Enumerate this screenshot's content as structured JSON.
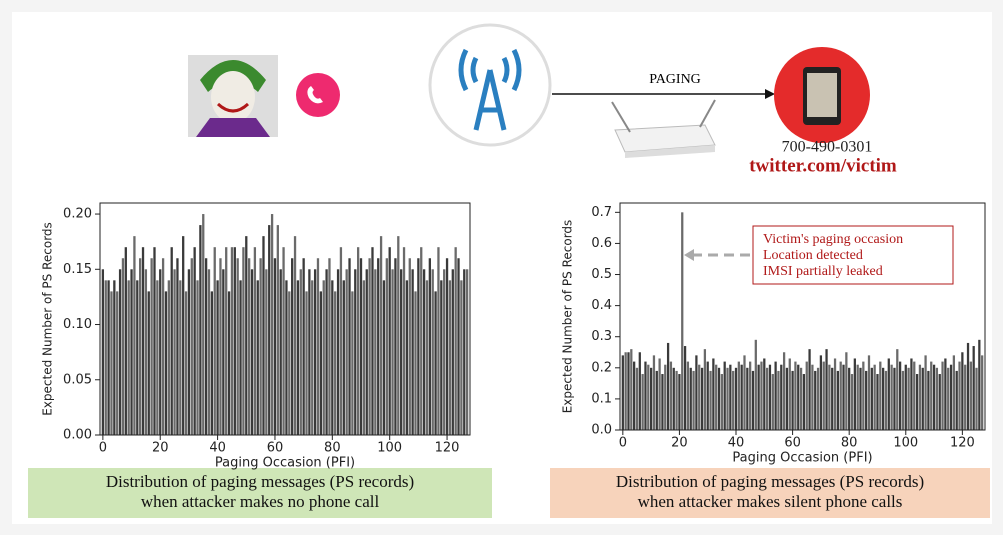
{
  "diagram": {
    "paging_label": "PAGING",
    "phone_number": "700-490-0301",
    "handle": "twitter.com/victim"
  },
  "chart_data": [
    {
      "type": "bar",
      "xlabel": "Paging Occasion (PFI)",
      "ylabel": "Expected Number of PS Records",
      "caption": [
        "Distribution of paging messages (PS records)",
        "when attacker makes no phone call"
      ],
      "color": "#3a3a3a",
      "xlim": [
        -1,
        128
      ],
      "xticks": [
        0,
        20,
        40,
        60,
        80,
        100,
        120
      ],
      "ylim": [
        0,
        0.21
      ],
      "yticks": [
        {
          "value": 0,
          "label": "0.00"
        },
        0.05,
        {
          "value": 0.1,
          "label": "0.10"
        },
        0.15,
        {
          "value": 0.2,
          "label": "0.20"
        }
      ],
      "x": [
        0,
        1,
        2,
        3,
        4,
        5,
        6,
        7,
        8,
        9,
        10,
        11,
        12,
        13,
        14,
        15,
        16,
        17,
        18,
        19,
        20,
        21,
        22,
        23,
        24,
        25,
        26,
        27,
        28,
        29,
        30,
        31,
        32,
        33,
        34,
        35,
        36,
        37,
        38,
        39,
        40,
        41,
        42,
        43,
        44,
        45,
        46,
        47,
        48,
        49,
        50,
        51,
        52,
        53,
        54,
        55,
        56,
        57,
        58,
        59,
        60,
        61,
        62,
        63,
        64,
        65,
        66,
        67,
        68,
        69,
        70,
        71,
        72,
        73,
        74,
        75,
        76,
        77,
        78,
        79,
        80,
        81,
        82,
        83,
        84,
        85,
        86,
        87,
        88,
        89,
        90,
        91,
        92,
        93,
        94,
        95,
        96,
        97,
        98,
        99,
        100,
        101,
        102,
        103,
        104,
        105,
        106,
        107,
        108,
        109,
        110,
        111,
        112,
        113,
        114,
        115,
        116,
        117,
        118,
        119,
        120,
        121,
        122,
        123,
        124,
        125,
        126,
        127
      ],
      "values": [
        0.15,
        0.14,
        0.14,
        0.13,
        0.14,
        0.13,
        0.15,
        0.16,
        0.17,
        0.14,
        0.15,
        0.18,
        0.14,
        0.16,
        0.17,
        0.15,
        0.13,
        0.16,
        0.17,
        0.14,
        0.15,
        0.16,
        0.13,
        0.14,
        0.17,
        0.15,
        0.16,
        0.14,
        0.18,
        0.13,
        0.15,
        0.16,
        0.17,
        0.14,
        0.19,
        0.2,
        0.16,
        0.15,
        0.13,
        0.17,
        0.14,
        0.16,
        0.15,
        0.17,
        0.13,
        0.17,
        0.17,
        0.16,
        0.14,
        0.17,
        0.18,
        0.16,
        0.15,
        0.17,
        0.14,
        0.16,
        0.18,
        0.15,
        0.19,
        0.2,
        0.16,
        0.19,
        0.15,
        0.17,
        0.14,
        0.13,
        0.16,
        0.18,
        0.14,
        0.15,
        0.16,
        0.13,
        0.15,
        0.14,
        0.15,
        0.16,
        0.13,
        0.14,
        0.15,
        0.16,
        0.14,
        0.13,
        0.15,
        0.17,
        0.14,
        0.15,
        0.16,
        0.13,
        0.15,
        0.17,
        0.16,
        0.14,
        0.15,
        0.16,
        0.17,
        0.15,
        0.16,
        0.18,
        0.14,
        0.16,
        0.17,
        0.15,
        0.16,
        0.18,
        0.15,
        0.17,
        0.14,
        0.16,
        0.15,
        0.13,
        0.16,
        0.17,
        0.15,
        0.14,
        0.16,
        0.15,
        0.13,
        0.17,
        0.14,
        0.15,
        0.16,
        0.14,
        0.15,
        0.17,
        0.16,
        0.14,
        0.15,
        0.15
      ]
    },
    {
      "type": "bar",
      "xlabel": "Paging Occasion (PFI)",
      "ylabel": "Expected Number of PS Records",
      "caption": [
        "Distribution of paging messages (PS records)",
        "when attacker makes silent phone calls"
      ],
      "annotation": [
        "Victim's paging occasion",
        "Location detected",
        "IMSI partially leaked"
      ],
      "color": "#3a3a3a",
      "xlim": [
        -1,
        128
      ],
      "xticks": [
        0,
        20,
        40,
        60,
        80,
        100,
        120
      ],
      "ylim": [
        0,
        0.73
      ],
      "yticks": [
        {
          "value": 0,
          "label": "0.0"
        },
        0.1,
        0.2,
        0.3,
        0.4,
        0.5,
        0.6,
        0.7
      ],
      "x": [
        0,
        1,
        2,
        3,
        4,
        5,
        6,
        7,
        8,
        9,
        10,
        11,
        12,
        13,
        14,
        15,
        16,
        17,
        18,
        19,
        20,
        21,
        22,
        23,
        24,
        25,
        26,
        27,
        28,
        29,
        30,
        31,
        32,
        33,
        34,
        35,
        36,
        37,
        38,
        39,
        40,
        41,
        42,
        43,
        44,
        45,
        46,
        47,
        48,
        49,
        50,
        51,
        52,
        53,
        54,
        55,
        56,
        57,
        58,
        59,
        60,
        61,
        62,
        63,
        64,
        65,
        66,
        67,
        68,
        69,
        70,
        71,
        72,
        73,
        74,
        75,
        76,
        77,
        78,
        79,
        80,
        81,
        82,
        83,
        84,
        85,
        86,
        87,
        88,
        89,
        90,
        91,
        92,
        93,
        94,
        95,
        96,
        97,
        98,
        99,
        100,
        101,
        102,
        103,
        104,
        105,
        106,
        107,
        108,
        109,
        110,
        111,
        112,
        113,
        114,
        115,
        116,
        117,
        118,
        119,
        120,
        121,
        122,
        123,
        124,
        125,
        126,
        127
      ],
      "values": [
        0.24,
        0.25,
        0.25,
        0.26,
        0.22,
        0.2,
        0.25,
        0.18,
        0.22,
        0.21,
        0.2,
        0.24,
        0.19,
        0.23,
        0.18,
        0.21,
        0.28,
        0.22,
        0.2,
        0.19,
        0.18,
        0.7,
        0.27,
        0.22,
        0.2,
        0.19,
        0.24,
        0.21,
        0.2,
        0.26,
        0.22,
        0.19,
        0.23,
        0.21,
        0.2,
        0.18,
        0.22,
        0.2,
        0.21,
        0.19,
        0.2,
        0.22,
        0.21,
        0.24,
        0.2,
        0.22,
        0.19,
        0.29,
        0.21,
        0.22,
        0.23,
        0.2,
        0.21,
        0.18,
        0.22,
        0.19,
        0.21,
        0.25,
        0.2,
        0.23,
        0.19,
        0.22,
        0.21,
        0.2,
        0.18,
        0.22,
        0.26,
        0.21,
        0.19,
        0.2,
        0.24,
        0.22,
        0.26,
        0.21,
        0.2,
        0.23,
        0.19,
        0.22,
        0.21,
        0.25,
        0.2,
        0.18,
        0.23,
        0.21,
        0.2,
        0.22,
        0.19,
        0.24,
        0.2,
        0.21,
        0.18,
        0.22,
        0.2,
        0.19,
        0.23,
        0.21,
        0.2,
        0.26,
        0.22,
        0.19,
        0.21,
        0.2,
        0.23,
        0.22,
        0.18,
        0.21,
        0.2,
        0.24,
        0.19,
        0.22,
        0.21,
        0.2,
        0.18,
        0.22,
        0.23,
        0.2,
        0.21,
        0.24,
        0.19,
        0.22,
        0.25,
        0.21,
        0.28,
        0.22,
        0.27,
        0.2,
        0.29,
        0.24
      ]
    }
  ]
}
